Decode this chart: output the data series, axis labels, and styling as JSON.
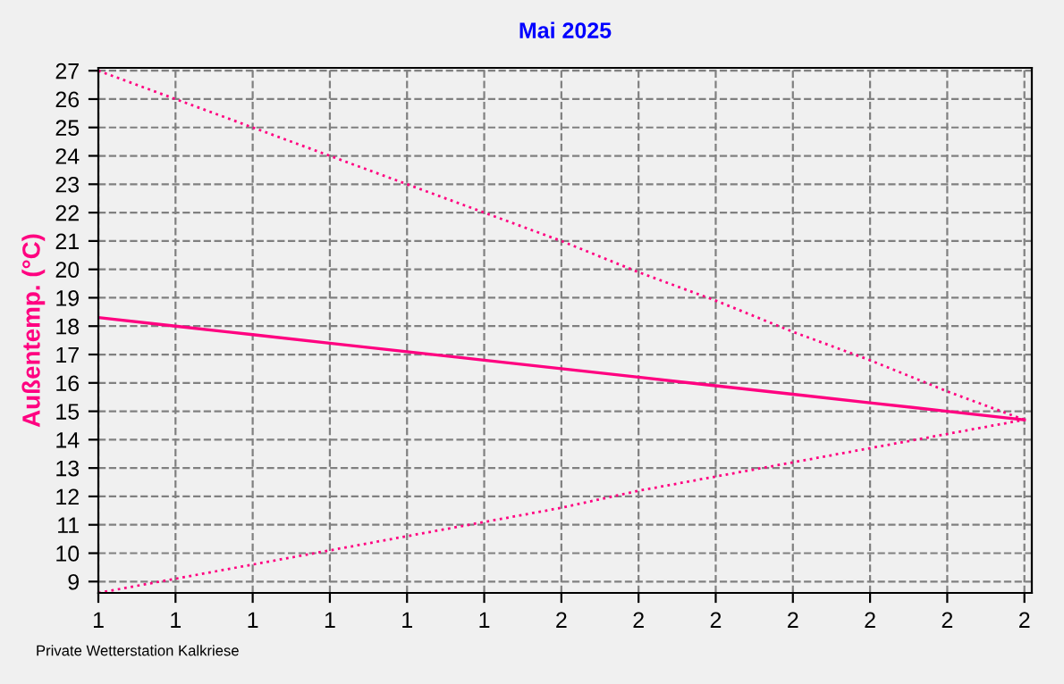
{
  "chart_data": {
    "type": "line",
    "title": "Mai 2025",
    "ylabel": "Außentemp. (°C)",
    "categories": [
      "1",
      "1",
      "1",
      "1",
      "1",
      "1",
      "2",
      "2",
      "2",
      "2",
      "2",
      "2",
      "2"
    ],
    "series": [
      {
        "color": "#ff0080",
        "values": [
          27.0,
          26.0,
          25.0,
          24.0,
          23.0,
          22.0,
          21.0,
          19.9,
          18.9,
          17.8,
          16.8,
          15.7,
          14.7
        ],
        "line_style": "dotted"
      },
      {
        "color": "#ff0080",
        "values": [
          18.3,
          18.0,
          17.7,
          17.4,
          17.1,
          16.8,
          16.5,
          16.2,
          15.9,
          15.6,
          15.3,
          15.0,
          14.7
        ],
        "line_style": "solid"
      },
      {
        "color": "#ff0080",
        "values": [
          8.6,
          9.1,
          9.6,
          10.1,
          10.6,
          11.1,
          11.6,
          12.2,
          12.7,
          13.2,
          13.7,
          14.2,
          14.7
        ],
        "line_style": "dotted"
      }
    ],
    "ylim": [
      8.6,
      27.1
    ],
    "yticks": [
      9,
      10,
      11,
      12,
      13,
      14,
      15,
      16,
      17,
      18,
      19,
      20,
      21,
      22,
      23,
      24,
      25,
      26,
      27
    ],
    "grid": true,
    "marker": "none",
    "annotations": [
      "Private Wetterstation Kalkriese"
    ]
  }
}
